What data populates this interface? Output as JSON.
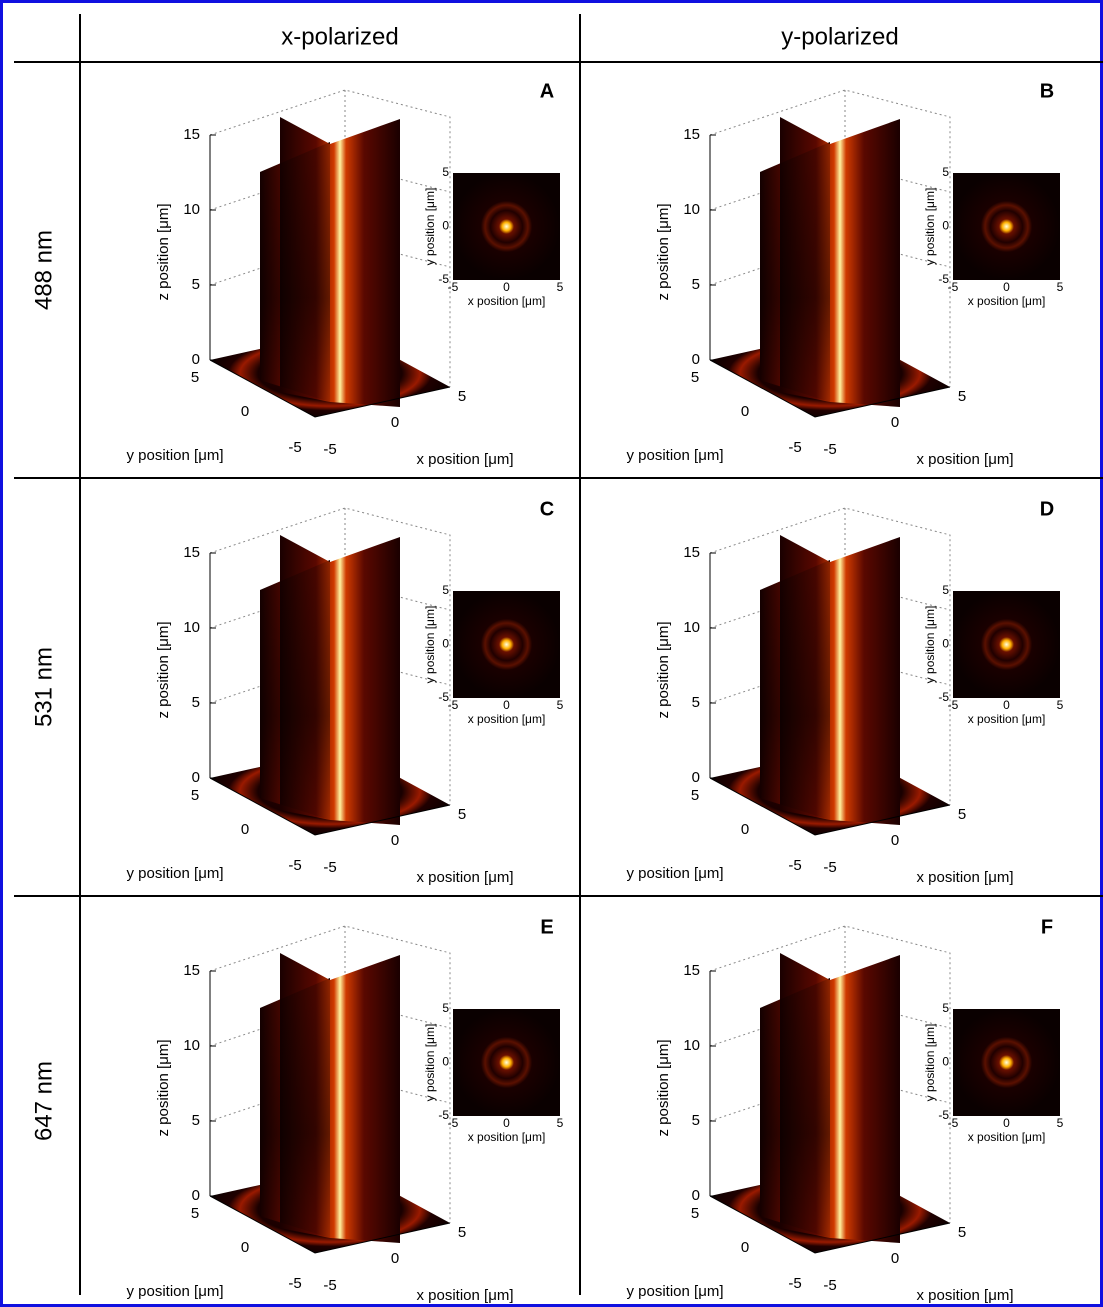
{
  "header": {
    "columns": [
      "x-polarized",
      "y-polarized"
    ]
  },
  "rows": [
    "488 nm",
    "531 nm",
    "647 nm"
  ],
  "panels": [
    {
      "letter": "A"
    },
    {
      "letter": "B"
    },
    {
      "letter": "C"
    },
    {
      "letter": "D"
    },
    {
      "letter": "E"
    },
    {
      "letter": "F"
    }
  ],
  "axes": {
    "z_label": "z position [μm]",
    "y_label": "y position [μm]",
    "x_label": "x position [μm]",
    "z_ticks": [
      0,
      5,
      10,
      15
    ],
    "y_ticks": [
      5,
      0,
      -5
    ],
    "x_ticks": [
      -5,
      0,
      5
    ],
    "inset_ticks": [
      -5,
      0,
      5
    ]
  }
}
